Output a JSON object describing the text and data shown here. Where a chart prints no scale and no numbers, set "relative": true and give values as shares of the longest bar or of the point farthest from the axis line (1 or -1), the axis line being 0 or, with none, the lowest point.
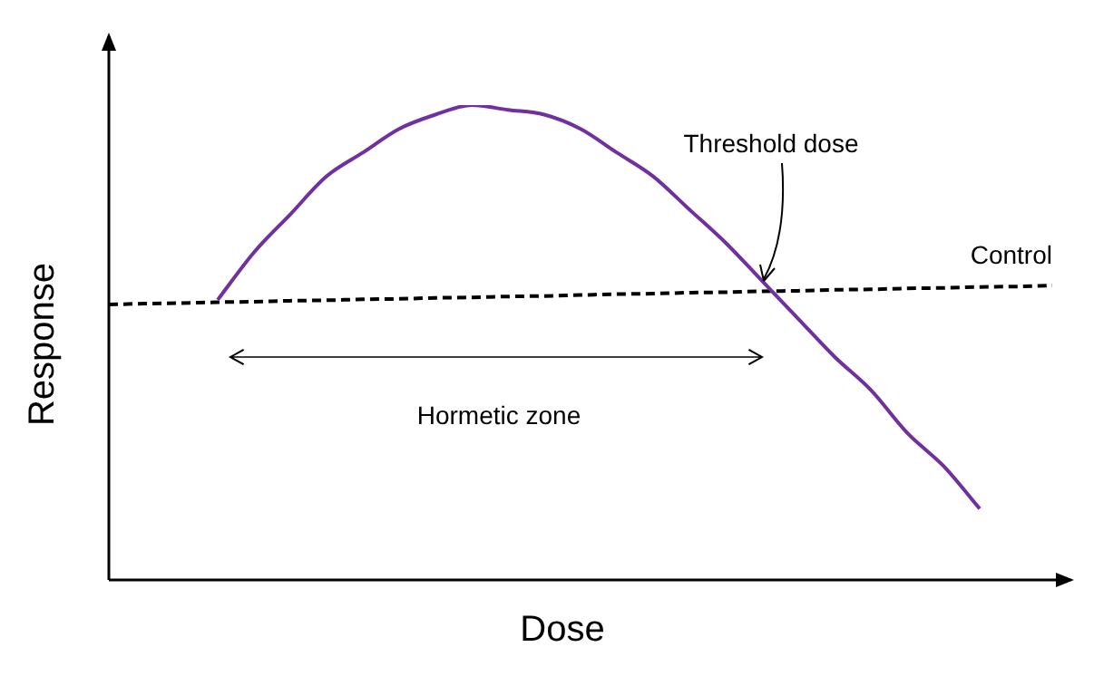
{
  "chart_data": {
    "type": "line",
    "relative": true,
    "xlabel": "Dose",
    "ylabel": "Response",
    "tick_labels": false,
    "grid": false,
    "marker": "none",
    "categories": [
      null,
      null,
      null,
      null,
      null,
      null,
      null,
      null,
      null,
      null,
      null,
      null,
      null,
      null,
      null,
      null,
      null,
      null,
      null,
      null,
      null,
      null,
      null,
      null,
      null,
      null,
      null
    ],
    "series": [
      {
        "color": "#7030a0",
        "line_style": "solid",
        "values": [
          null,
          null,
          null,
          0.59,
          0.69,
          0.77,
          0.85,
          0.9,
          0.95,
          0.98,
          1,
          0.99,
          0.98,
          0.95,
          0.9,
          0.85,
          0.78,
          0.71,
          0.63,
          0.55,
          0.47,
          0.4,
          0.31,
          0.24,
          0.15,
          null,
          null
        ]
      },
      {
        "name": "Control",
        "color": "#000000",
        "line_style": "dashed",
        "values": [
          0.58,
          0.582,
          0.583,
          0.585,
          0.586,
          0.588,
          0.589,
          0.591,
          0.592,
          0.594,
          0.595,
          0.597,
          0.598,
          0.6,
          0.602,
          0.603,
          0.605,
          0.606,
          0.608,
          0.609,
          0.611,
          0.612,
          0.614,
          0.615,
          0.617,
          0.618,
          0.62
        ]
      }
    ],
    "annotations": [
      "Threshold dose",
      "Hormetic zone"
    ]
  }
}
